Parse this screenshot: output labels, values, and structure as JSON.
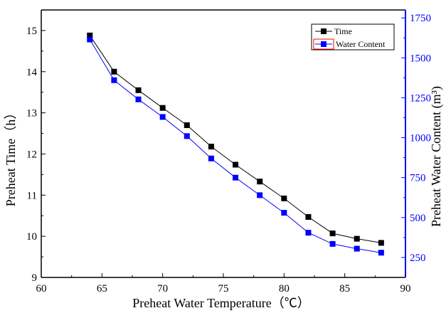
{
  "chart_data": {
    "type": "line",
    "xlabel": "Preheat Water Temperature（℃）",
    "ylabel_left": "Preheat Time（h）",
    "ylabel_right": "Preheat Water Content (m³)",
    "xlim": [
      60,
      90
    ],
    "ylim_left": [
      9,
      15.5
    ],
    "ylim_right": [
      125,
      1800
    ],
    "x_ticks": [
      60,
      65,
      70,
      75,
      80,
      85,
      90
    ],
    "y_left_ticks": [
      9,
      10,
      11,
      12,
      13,
      14,
      15
    ],
    "y_right_ticks": [
      250,
      500,
      750,
      1000,
      1250,
      1500,
      1750
    ],
    "x": [
      64,
      66,
      68,
      70,
      72,
      74,
      76,
      78,
      80,
      82,
      84,
      86,
      88
    ],
    "series": [
      {
        "name": "Time",
        "axis": "left",
        "color": "#000000",
        "marker": "square",
        "values": [
          14.88,
          14.0,
          13.55,
          13.12,
          12.7,
          12.18,
          11.74,
          11.33,
          10.92,
          10.47,
          10.07,
          9.94,
          9.84
        ]
      },
      {
        "name": "Water Content",
        "axis": "right",
        "color": "#0000ff",
        "marker": "square",
        "values": [
          1615,
          1360,
          1240,
          1130,
          1010,
          870,
          750,
          640,
          530,
          405,
          335,
          305,
          280
        ]
      }
    ],
    "legend_position": "top-right",
    "grid": false
  },
  "colors": {
    "left_axis": "#000000",
    "right_axis": "#0000ff",
    "legend_highlight": "#ff0000"
  }
}
